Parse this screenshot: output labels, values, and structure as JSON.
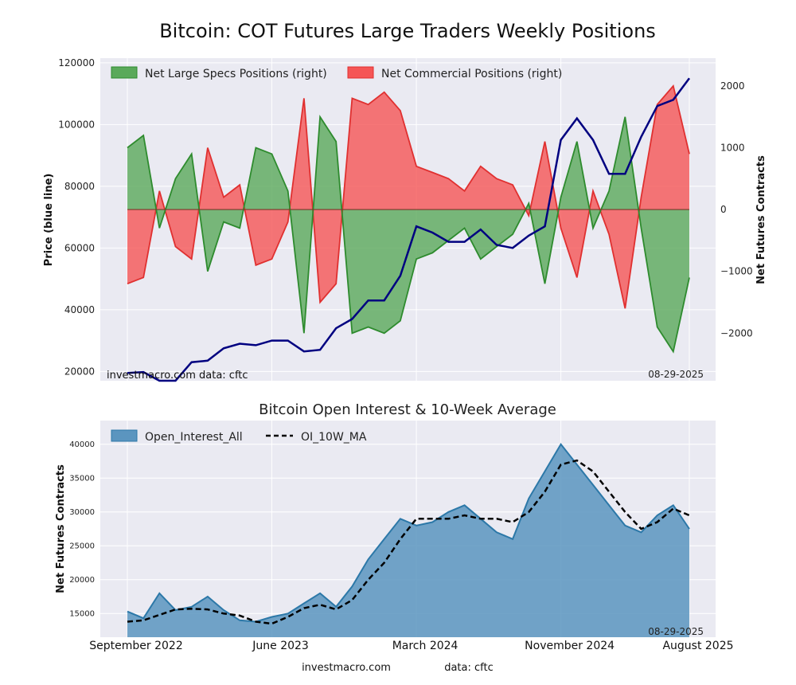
{
  "colors": {
    "background": "#eaeaf2",
    "grid": "#ffffff",
    "price_line": "#000080",
    "specs_fill": "#5aa95a",
    "specs_line": "#2e8b2e",
    "comm_fill": "#f55555",
    "comm_line": "#e03030",
    "oi_fill": "#5b95bf",
    "oi_line": "#2c78a8",
    "ma_line": "#000000"
  },
  "figure": {
    "title": "Bitcoin: COT Futures Large Traders Weekly Positions",
    "footer_left": "investmacro.com",
    "footer_right": "data: cftc",
    "date_ticks": [
      "September 2022",
      "June 2023",
      "March 2024",
      "November 2024",
      "August 2025"
    ]
  },
  "chart_data": [
    {
      "type": "line",
      "left_axis_label": "Price (blue line)",
      "right_axis_label": "Net Futures Contracts",
      "ylim_left": [
        17000,
        121500
      ],
      "ylim_right": [
        -2770,
        2450
      ],
      "y_ticks_left": [
        "20000",
        "40000",
        "60000",
        "80000",
        "100000",
        "120000"
      ],
      "y_ticks_right": [
        "−2000",
        "−1000",
        "0",
        "1000",
        "2000"
      ],
      "grid": true,
      "legend_position": "top-left",
      "annotation_left": "investmacro.com   data: cftc",
      "annotation_right": "08-29-2025",
      "legend": [
        {
          "label": "Net Large Specs Positions (right)",
          "color": "#5aa95a"
        },
        {
          "label": "Net Commercial Positions (right)",
          "color": "#f55555"
        }
      ],
      "x": [
        "2022-09",
        "2022-10",
        "2022-11",
        "2022-12",
        "2023-01",
        "2023-02",
        "2023-03",
        "2023-04",
        "2023-05",
        "2023-06",
        "2023-07",
        "2023-08",
        "2023-09",
        "2023-10",
        "2023-11",
        "2023-12",
        "2024-01",
        "2024-02",
        "2024-03",
        "2024-04",
        "2024-05",
        "2024-06",
        "2024-07",
        "2024-08",
        "2024-09",
        "2024-10",
        "2024-11",
        "2024-12",
        "2025-01",
        "2025-02",
        "2025-03",
        "2025-04",
        "2025-05",
        "2025-06",
        "2025-07",
        "2025-08"
      ],
      "series": [
        {
          "name": "Price",
          "values": [
            19500,
            19800,
            17000,
            17000,
            23000,
            23500,
            27500,
            29000,
            28500,
            30000,
            30000,
            26500,
            27000,
            34000,
            37000,
            43000,
            43000,
            51000,
            67000,
            65000,
            62000,
            62000,
            66000,
            61000,
            60000,
            64000,
            67000,
            95000,
            102000,
            95000,
            84000,
            84000,
            96000,
            106000,
            108000,
            115000
          ]
        },
        {
          "name": "Net Large Specs Positions (right)",
          "values": [
            1000,
            1200,
            -300,
            500,
            900,
            -1000,
            -200,
            -300,
            1000,
            900,
            300,
            -2000,
            1500,
            1100,
            -2000,
            -1900,
            -2000,
            -1800,
            -800,
            -700,
            -500,
            -300,
            -800,
            -600,
            -400,
            100,
            -1200,
            200,
            1100,
            -300,
            300,
            1500,
            -300,
            -1900,
            -2300,
            -1100
          ]
        },
        {
          "name": "Net Commercial Positions (right)",
          "values": [
            -1200,
            -1100,
            300,
            -600,
            -800,
            1000,
            200,
            400,
            -900,
            -800,
            -200,
            1800,
            -1500,
            -1200,
            1800,
            1700,
            1900,
            1600,
            700,
            600,
            500,
            300,
            700,
            500,
            400,
            -100,
            1100,
            -300,
            -1100,
            300,
            -400,
            -1600,
            200,
            1700,
            2000,
            900
          ]
        }
      ]
    },
    {
      "type": "area",
      "title": "Bitcoin Open Interest & 10-Week Average",
      "ylabel": "Net Futures Contracts",
      "ylim": [
        11500,
        43500
      ],
      "y_ticks": [
        "15000",
        "20000",
        "25000",
        "30000",
        "35000",
        "40000"
      ],
      "grid": true,
      "legend_position": "top-left",
      "annotation_right": "08-29-2025",
      "legend": [
        {
          "label": "Open_Interest_All",
          "color": "#5b95bf"
        },
        {
          "label": "OI_10W_MA",
          "color": "#000000"
        }
      ],
      "x": [
        "2022-09",
        "2022-10",
        "2022-11",
        "2022-12",
        "2023-01",
        "2023-02",
        "2023-03",
        "2023-04",
        "2023-05",
        "2023-06",
        "2023-07",
        "2023-08",
        "2023-09",
        "2023-10",
        "2023-11",
        "2023-12",
        "2024-01",
        "2024-02",
        "2024-03",
        "2024-04",
        "2024-05",
        "2024-06",
        "2024-07",
        "2024-08",
        "2024-09",
        "2024-10",
        "2024-11",
        "2024-12",
        "2025-01",
        "2025-02",
        "2025-03",
        "2025-04",
        "2025-05",
        "2025-06",
        "2025-07",
        "2025-08"
      ],
      "series": [
        {
          "name": "Open_Interest_All",
          "values": [
            15300,
            14300,
            18000,
            15500,
            16000,
            17500,
            15500,
            14000,
            13800,
            14500,
            15000,
            16500,
            18000,
            16000,
            19000,
            23000,
            26000,
            29000,
            28000,
            28500,
            30000,
            31000,
            29000,
            27000,
            26000,
            32000,
            36000,
            40000,
            37000,
            34000,
            31000,
            28000,
            27000,
            29500,
            31000,
            27500
          ]
        },
        {
          "name": "OI_10W_MA",
          "values": [
            13800,
            14000,
            14800,
            15600,
            15700,
            15600,
            15000,
            14700,
            13800,
            13500,
            14500,
            15800,
            16300,
            15600,
            17000,
            20000,
            22500,
            26000,
            29000,
            29000,
            29000,
            29500,
            29000,
            29000,
            28500,
            30000,
            33000,
            37000,
            37600,
            36000,
            33000,
            30000,
            27500,
            28500,
            30500,
            29500
          ]
        }
      ]
    }
  ]
}
